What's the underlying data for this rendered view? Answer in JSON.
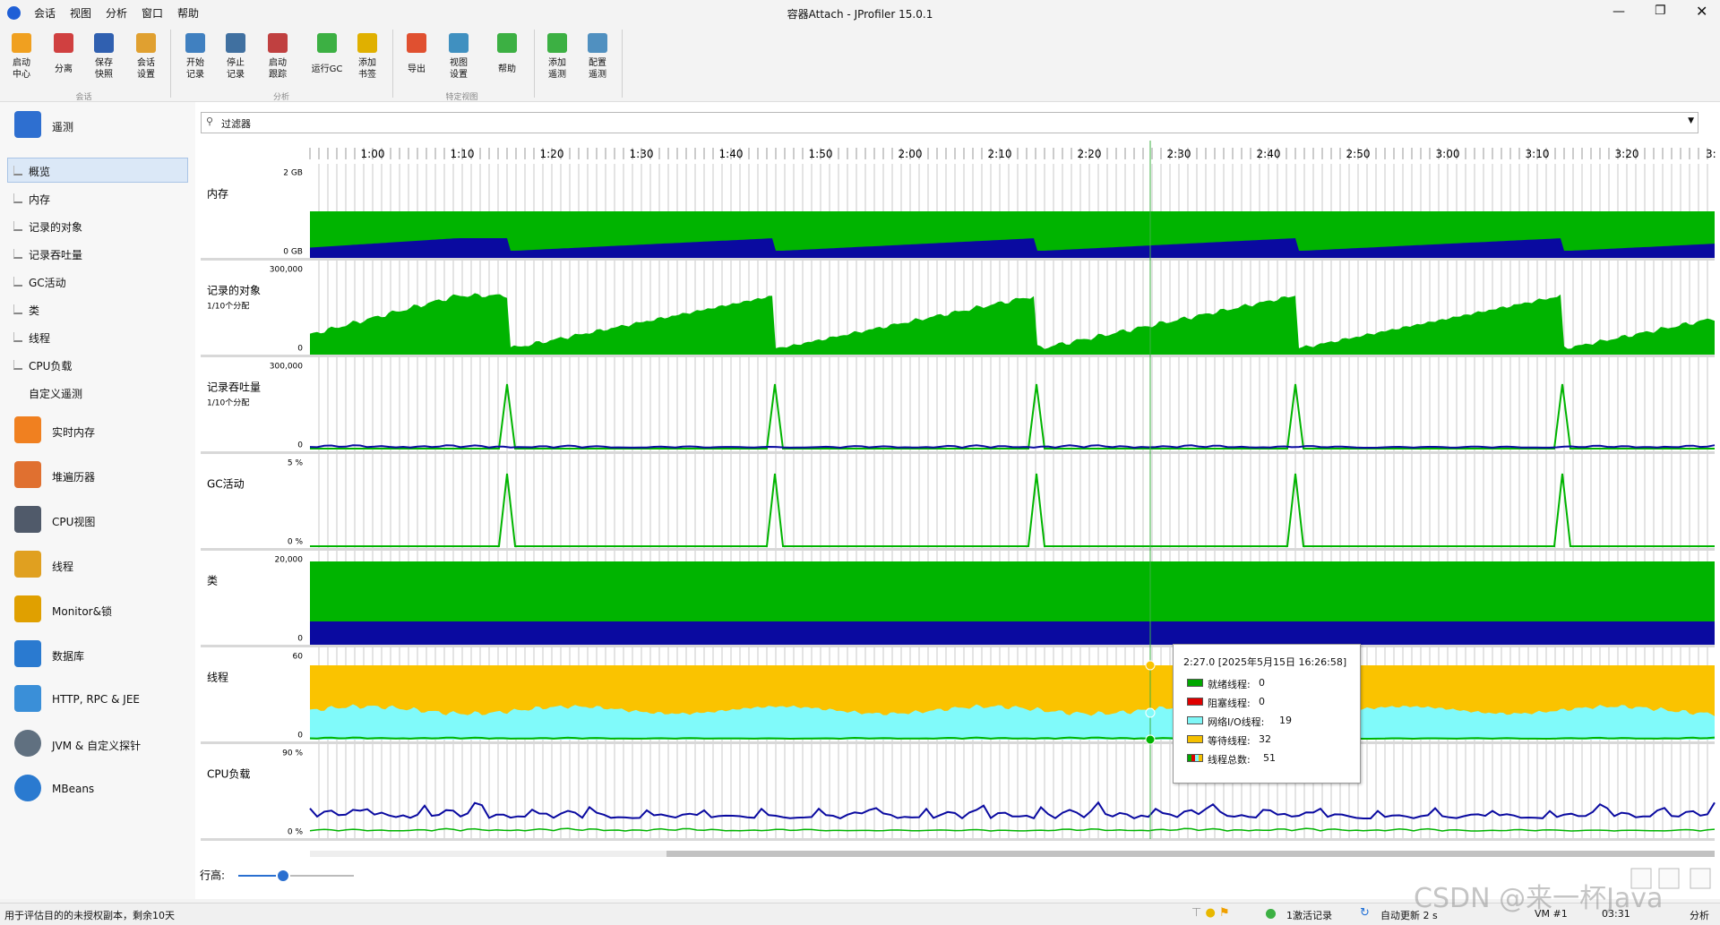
{
  "window": {
    "title": "容器Attach - JProfiler 15.0.1"
  },
  "menu": [
    "会话",
    "视图",
    "分析",
    "窗口",
    "帮助"
  ],
  "toolbar": {
    "groups": [
      {
        "label": "会话",
        "buttons": [
          [
            "启动",
            "中心"
          ],
          [
            "分离"
          ],
          [
            "保存",
            "快照"
          ],
          [
            "会话",
            "设置"
          ]
        ]
      },
      {
        "label": "分析",
        "buttons": [
          [
            "开始",
            "记录"
          ],
          [
            "停止",
            "记录"
          ],
          [
            "启动",
            "跟踪"
          ],
          [
            "运行GC"
          ],
          [
            "添加",
            "书签"
          ]
        ]
      },
      {
        "label": "特定视图",
        "buttons": [
          [
            "导出"
          ],
          [
            "视图",
            "设置"
          ],
          [
            "帮助"
          ]
        ]
      },
      {
        "buttons": [
          [
            "添加",
            "遥测"
          ],
          [
            "配置",
            "遥测"
          ]
        ]
      }
    ]
  },
  "sidebar": {
    "sections": [
      {
        "label": "遥测",
        "items": [
          "概览",
          "内存",
          "记录的对象",
          "记录吞吐量",
          "GC活动",
          "类",
          "线程",
          "CPU负载",
          "自定义遥测"
        ],
        "selected": 0
      },
      {
        "label": "实时内存"
      },
      {
        "label": "堆遍历器"
      },
      {
        "label": "CPU视图"
      },
      {
        "label": "线程"
      },
      {
        "label": "Monitor&锁"
      },
      {
        "label": "数据库"
      },
      {
        "label": "HTTP, RPC & JEE"
      },
      {
        "label": "JVM & 自定义探针"
      },
      {
        "label": "MBeans"
      }
    ]
  },
  "filter": {
    "placeholder": "过滤器"
  },
  "time_axis": [
    "1:00",
    "1:10",
    "1:20",
    "1:30",
    "1:40",
    "1:50",
    "2:00",
    "2:10",
    "2:20",
    "2:30",
    "2:40",
    "2:50",
    "3:00",
    "3:10",
    "3:20",
    "3:"
  ],
  "panels": [
    {
      "label": "内存",
      "ymax": "2 GB",
      "ymin": "0 GB"
    },
    {
      "label": "记录的对象",
      "note": "1/10个分配",
      "ymax": "300,000",
      "ymin": "0"
    },
    {
      "label": "记录吞吐量",
      "note": "1/10个分配",
      "ymax": "300,000",
      "ymin": "0"
    },
    {
      "label": "GC活动",
      "ymax": "5 %",
      "ymin": "0 %"
    },
    {
      "label": "类",
      "ymax": "20,000",
      "ymin": "0"
    },
    {
      "label": "线程",
      "ymax": "60",
      "ymin": "0"
    },
    {
      "label": "CPU负载",
      "ymax": "90 %",
      "ymin": "0 %"
    }
  ],
  "tooltip": {
    "title": "2:27.0 [2025年5月15日 16:26:58]",
    "rows": [
      {
        "label": "就绪线程:",
        "value": 0,
        "color": "#00a800"
      },
      {
        "label": "阻塞线程:",
        "value": 0,
        "color": "#e00000"
      },
      {
        "label": "网络I/O线程:",
        "value": 19,
        "color": "#7ff7f7"
      },
      {
        "label": "等待线程:",
        "value": 32,
        "color": "#f5c000"
      },
      {
        "label": "线程总数:",
        "value": 51
      }
    ]
  },
  "row_height": {
    "label": "行高:"
  },
  "status": {
    "license": "用于评估目的的未授权副本，剩余10天",
    "recordings": "1激活记录",
    "refresh": "自动更新 2 s",
    "vm": "VM #1",
    "time": "03:31",
    "mode": "分析"
  },
  "watermark": "CSDN @来一杯Java"
}
